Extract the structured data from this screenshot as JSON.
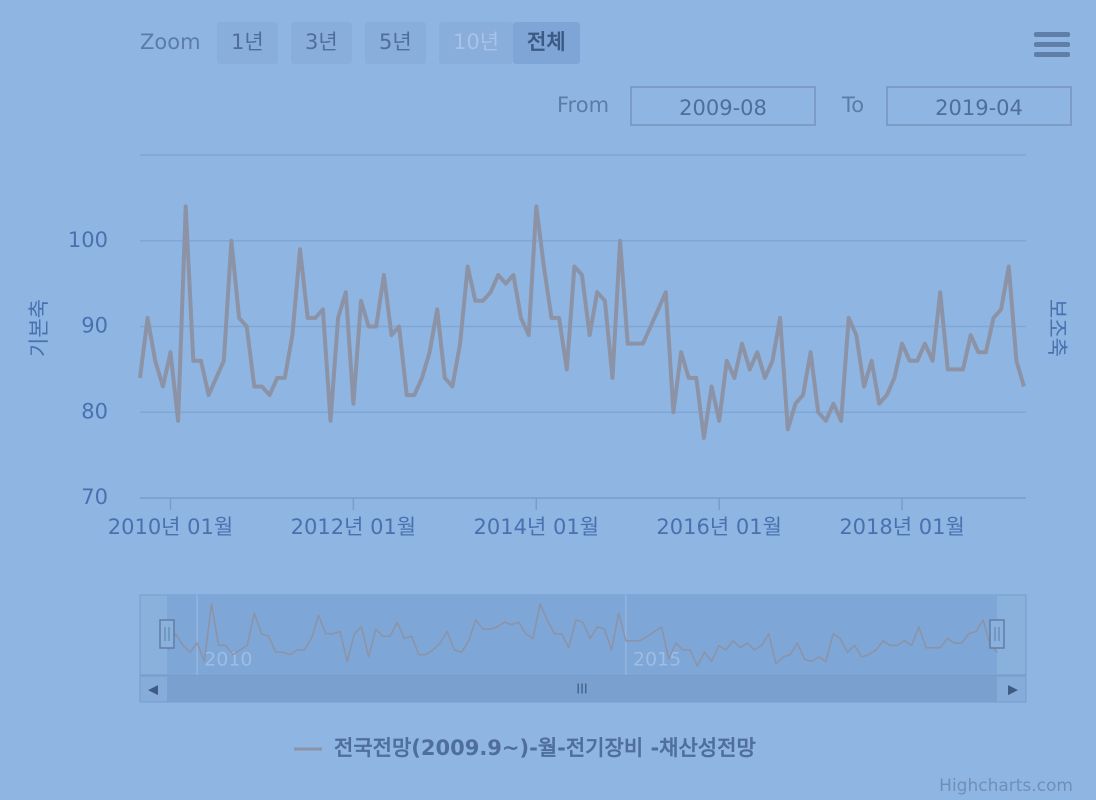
{
  "toolbar": {
    "zoom_label": "Zoom",
    "buttons": [
      "1년",
      "3년",
      "5년",
      "10년",
      "전체"
    ],
    "from_label": "From",
    "from_value": "2009-08",
    "to_label": "To",
    "to_value": "2019-04"
  },
  "credits": "Highcharts.com",
  "chart_data": {
    "type": "line",
    "y_axis_label": "기본축",
    "y2_axis_label": "보조축",
    "x": [
      "2009-09",
      "2009-10",
      "2009-11",
      "2009-12",
      "2010-01",
      "2010-02",
      "2010-03",
      "2010-04",
      "2010-05",
      "2010-06",
      "2010-07",
      "2010-08",
      "2010-09",
      "2010-10",
      "2010-11",
      "2010-12",
      "2011-01",
      "2011-02",
      "2011-03",
      "2011-04",
      "2011-05",
      "2011-06",
      "2011-07",
      "2011-08",
      "2011-09",
      "2011-10",
      "2011-11",
      "2011-12",
      "2012-01",
      "2012-02",
      "2012-03",
      "2012-04",
      "2012-05",
      "2012-06",
      "2012-07",
      "2012-08",
      "2012-09",
      "2012-10",
      "2012-11",
      "2012-12",
      "2013-01",
      "2013-02",
      "2013-03",
      "2013-04",
      "2013-05",
      "2013-06",
      "2013-07",
      "2013-08",
      "2013-09",
      "2013-10",
      "2013-11",
      "2013-12",
      "2014-01",
      "2014-02",
      "2014-03",
      "2014-04",
      "2014-05",
      "2014-06",
      "2014-07",
      "2014-08",
      "2014-09",
      "2014-10",
      "2014-11",
      "2014-12",
      "2015-01",
      "2015-02",
      "2015-03",
      "2015-04",
      "2015-05",
      "2015-06",
      "2015-07",
      "2015-08",
      "2015-09",
      "2015-10",
      "2015-11",
      "2015-12",
      "2016-01",
      "2016-02",
      "2016-03",
      "2016-04",
      "2016-05",
      "2016-06",
      "2016-07",
      "2016-08",
      "2016-09",
      "2016-10",
      "2016-11",
      "2016-12",
      "2017-01",
      "2017-02",
      "2017-03",
      "2017-04",
      "2017-05",
      "2017-06",
      "2017-07",
      "2017-08",
      "2017-09",
      "2017-10",
      "2017-11",
      "2017-12",
      "2018-01",
      "2018-02",
      "2018-03",
      "2018-04",
      "2018-05",
      "2018-06",
      "2018-07",
      "2018-08",
      "2018-09",
      "2018-10",
      "2018-11",
      "2018-12",
      "2019-01",
      "2019-02",
      "2019-03",
      "2019-04",
      "2019-05"
    ],
    "series": [
      {
        "name": "전국전망(2009.9~)-월-전기장비 -채산성전망",
        "color": "#8c93a6",
        "values": [
          84,
          91,
          86,
          83,
          87,
          79,
          104,
          86,
          86,
          82,
          84,
          86,
          100,
          91,
          90,
          83,
          83,
          82,
          84,
          84,
          89,
          99,
          91,
          91,
          92,
          79,
          91,
          94,
          81,
          93,
          90,
          90,
          96,
          89,
          90,
          82,
          82,
          84,
          87,
          92,
          84,
          83,
          88,
          97,
          93,
          93,
          94,
          96,
          95,
          96,
          91,
          89,
          104,
          97,
          91,
          91,
          85,
          97,
          96,
          89,
          94,
          93,
          84,
          100,
          88,
          88,
          88,
          90,
          92,
          94,
          80,
          87,
          84,
          84,
          77,
          83,
          79,
          86,
          84,
          88,
          85,
          87,
          84,
          86,
          91,
          78,
          81,
          82,
          87,
          80,
          79,
          81,
          79,
          91,
          89,
          83,
          86,
          81,
          82,
          84,
          88,
          86,
          86,
          88,
          86,
          94,
          85,
          85,
          85,
          89,
          87,
          87,
          91,
          92,
          97,
          86,
          83
        ]
      }
    ],
    "xlim": [
      "2009-09",
      "2019-05"
    ],
    "xticks": [
      {
        "value": "2010-01",
        "label": "2010년 01월"
      },
      {
        "value": "2012-01",
        "label": "2012년 01월"
      },
      {
        "value": "2014-01",
        "label": "2014년 01월"
      },
      {
        "value": "2016-01",
        "label": "2016년 01월"
      },
      {
        "value": "2018-01",
        "label": "2018년 01월"
      }
    ],
    "ylim": [
      70,
      110
    ],
    "yticks": [
      70,
      80,
      90,
      100
    ],
    "grid": true,
    "navigator_xlim": [
      "2009-05",
      "2019-09"
    ],
    "navigator_ylim": [
      74,
      107
    ],
    "navigator_xticks": [
      {
        "value": "2010-01",
        "label": "2010"
      },
      {
        "value": "2015-01",
        "label": "2015"
      }
    ],
    "legend": "bottom"
  }
}
